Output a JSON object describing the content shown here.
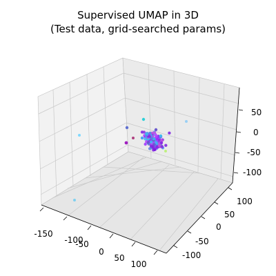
{
  "chart_data": {
    "type": "scatter",
    "projection": "3d",
    "title_line1": "Supervised UMAP in 3D",
    "title_line2": "(Test data, grid-searched params)",
    "xlabel": "",
    "ylabel": "",
    "zlabel": "",
    "grid": true,
    "x_ticks": [
      "-150",
      "-100",
      "-50",
      "0",
      "50",
      "100"
    ],
    "y_ticks": [
      "100",
      "50",
      "0",
      "-50",
      "-100"
    ],
    "z_ticks": [
      "50",
      "0",
      "-50",
      "-100"
    ],
    "colormap": "cool",
    "series": [
      {
        "points": [
          {
            "color": "#7fd8ff",
            "label": "cyan-outlier-left"
          },
          {
            "color": "#7fd0f0",
            "label": "cyan-outlier-bottom"
          },
          {
            "color": "#9ad0f5",
            "label": "cyan-outlier-right"
          },
          {
            "color": "#c0f080",
            "label": "yellowgreen-outlier"
          },
          {
            "color": "#30d0d8",
            "label": "teal-top"
          },
          {
            "color": "#6070d0",
            "label": "blue-left"
          },
          {
            "color": "#a020c0",
            "label": "magenta-left"
          },
          {
            "color": "#b04080",
            "label": "maroon-left"
          }
        ]
      }
    ]
  }
}
